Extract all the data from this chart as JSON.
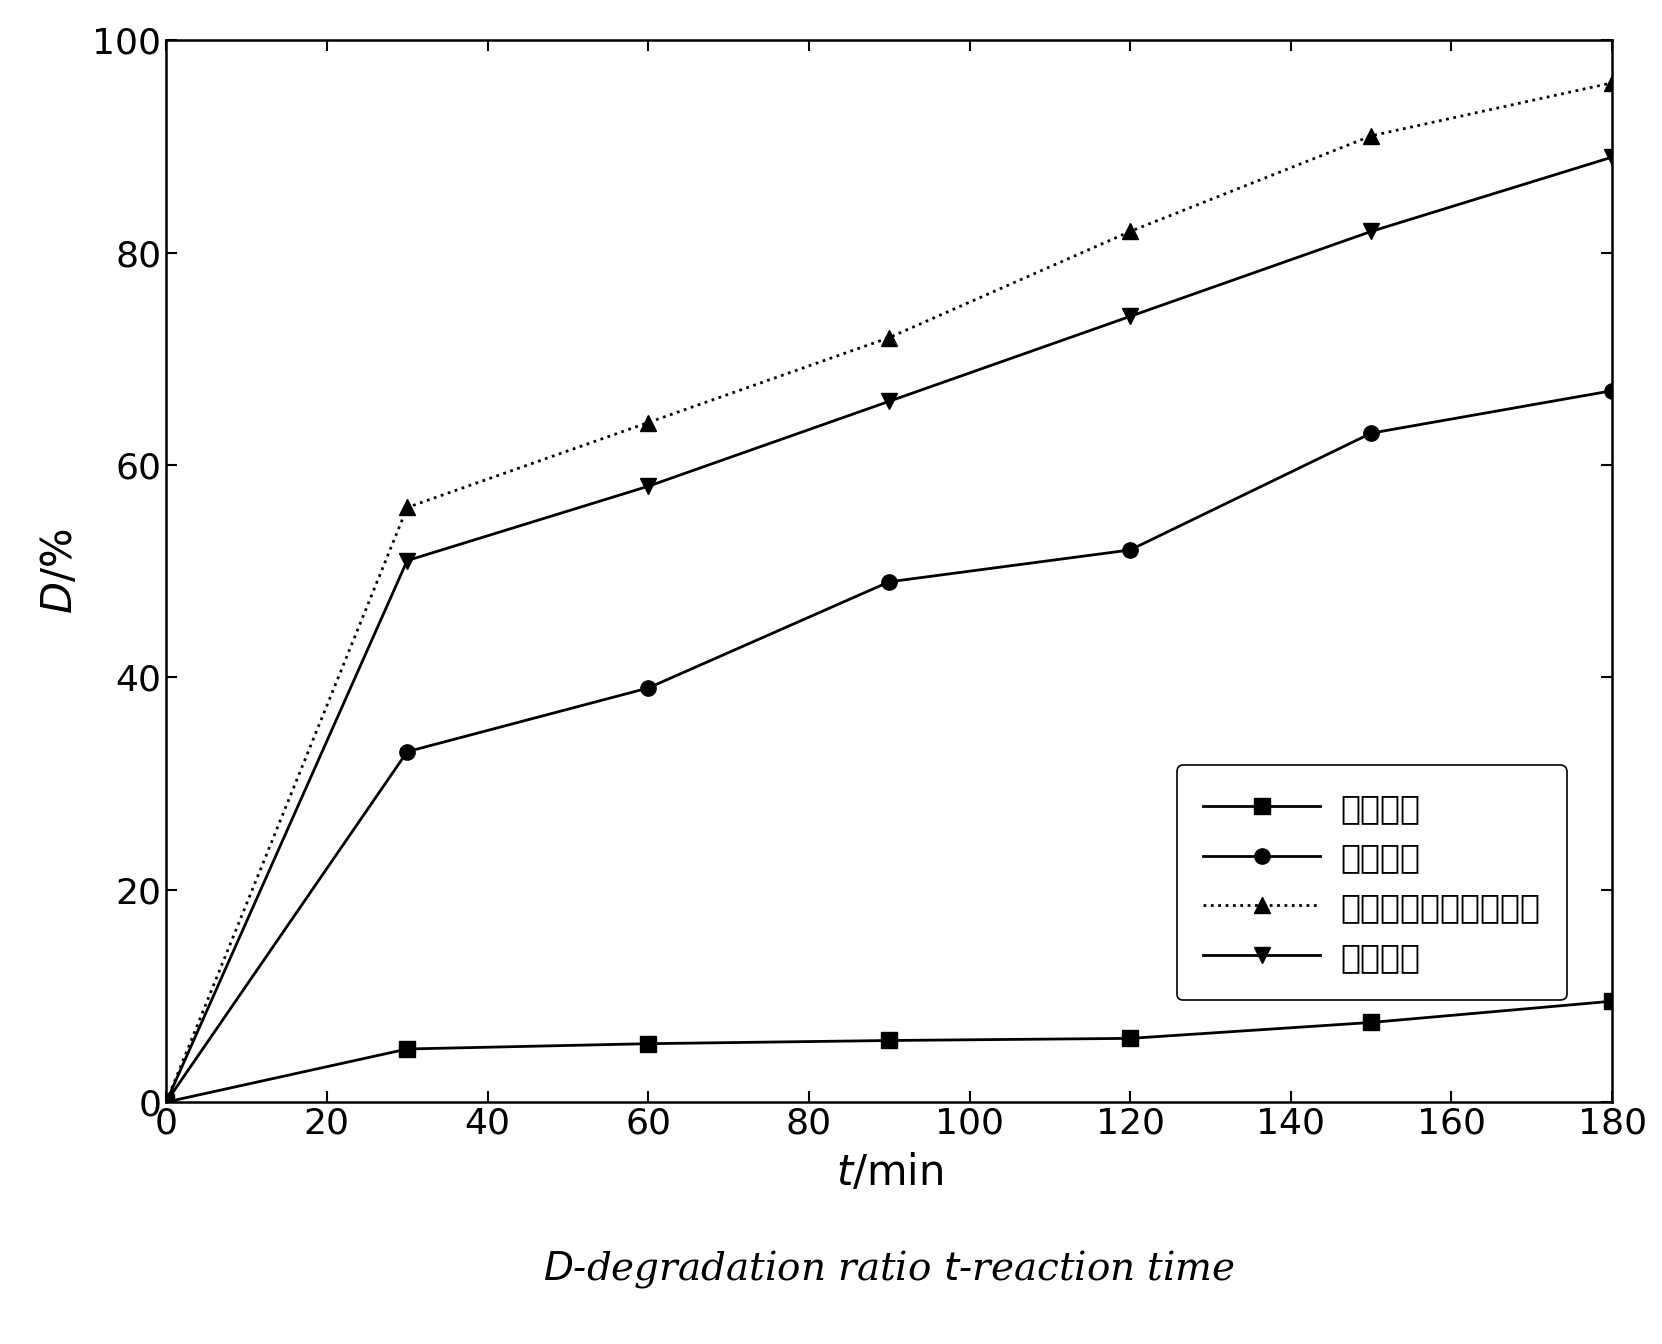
{
  "ylabel": "D/%",
  "xlim": [
    0,
    180
  ],
  "ylim": [
    0,
    100
  ],
  "xticks": [
    0,
    20,
    40,
    60,
    80,
    100,
    120,
    140,
    160,
    180
  ],
  "yticks": [
    0,
    20,
    40,
    60,
    80,
    100
  ],
  "series": [
    {
      "label": "无咆化剂",
      "x": [
        0,
        30,
        60,
        90,
        120,
        150,
        180
      ],
      "y": [
        0,
        5,
        5.5,
        5.8,
        6.0,
        7.5,
        9.5
      ],
      "marker": "s",
      "linestyle": "-",
      "color": "#000000",
      "markersize": 11
    },
    {
      "label": "片状粉体",
      "x": [
        0,
        30,
        60,
        90,
        120,
        150,
        180
      ],
      "y": [
        0,
        33,
        39,
        49,
        52,
        63,
        67
      ],
      "marker": "o",
      "linestyle": "-",
      "color": "#000000",
      "markersize": 11
    },
    {
      "label": "多孔晶松散芒团状粉体",
      "x": [
        0,
        30,
        60,
        90,
        120,
        150,
        180
      ],
      "y": [
        0,
        56,
        64,
        72,
        82,
        91,
        96
      ],
      "marker": "^",
      "linestyle": ":",
      "color": "#000000",
      "markersize": 12
    },
    {
      "label": "花状粉体",
      "x": [
        0,
        30,
        60,
        90,
        120,
        150,
        180
      ],
      "y": [
        0,
        51,
        58,
        66,
        74,
        82,
        89
      ],
      "marker": "v",
      "linestyle": "-",
      "color": "#000000",
      "markersize": 12
    }
  ],
  "figure_size": [
    16.62,
    13.44
  ],
  "dpi": 100,
  "background_color": "#ffffff",
  "tick_labelsize": 26,
  "axis_labelsize": 30,
  "legend_fontsize": 24,
  "caption_fontsize": 28
}
